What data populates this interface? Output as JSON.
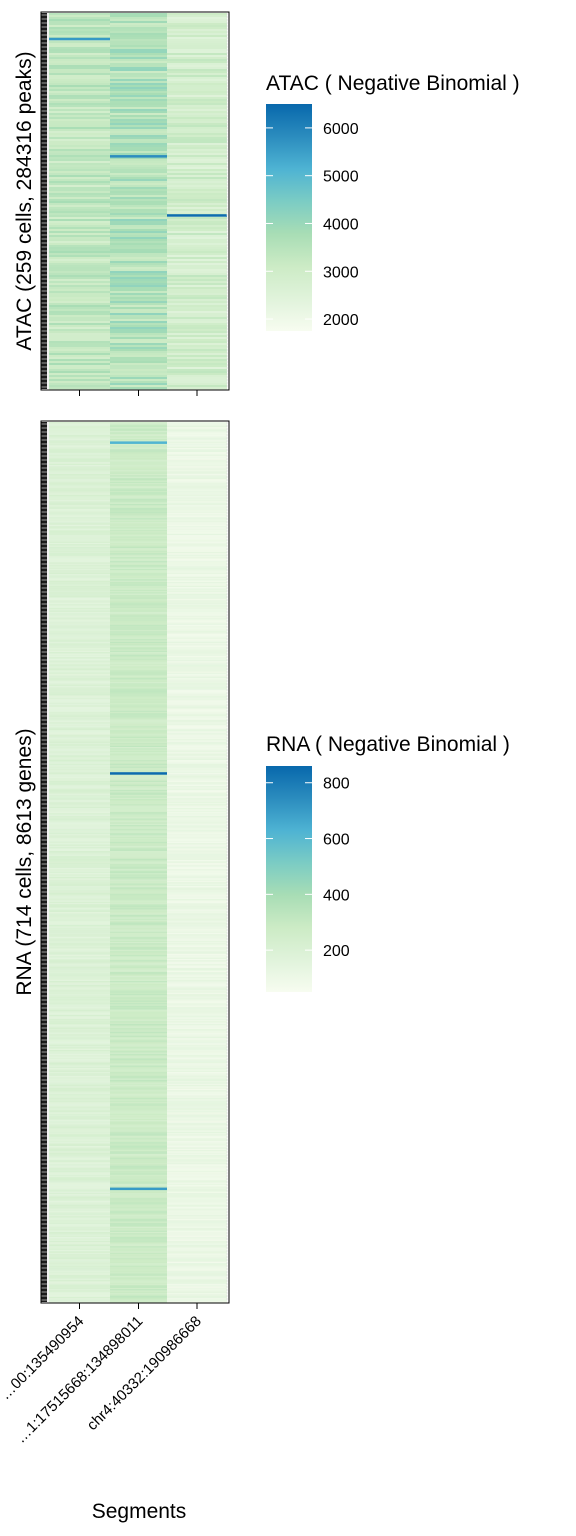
{
  "colors": {
    "scale": [
      "#F7FCF0",
      "#E0F3DB",
      "#CCEBC5",
      "#A8DDB5",
      "#7BCCC4",
      "#4EB3D3",
      "#2B8CBE",
      "#0868AC"
    ],
    "frame": "#000000",
    "gap_line": "#ffffff"
  },
  "chart_data": [
    {
      "type": "heatmap",
      "panel": "atac",
      "ylabel": "ATAC (259 cells, 284316 peaks)",
      "xlabel": "",
      "legend": {
        "title": "ATAC ( Negative Binomial )",
        "min": 1750,
        "max": 6500,
        "ticks": [
          2000,
          3000,
          4000,
          5000,
          6000
        ],
        "tick_labels": [
          "2000",
          "3000",
          "4000",
          "5000",
          "6000"
        ],
        "placement": "right"
      },
      "columns": [
        {
          "segment": "…00:135490954",
          "typical_value": 3300,
          "spread": 500
        },
        {
          "segment": "…1:17515668:134898011",
          "typical_value": 3600,
          "spread": 550
        },
        {
          "segment": "chr4:40332:190986668",
          "typical_value": 2900,
          "spread": 450
        }
      ],
      "n_cells": 259,
      "highlights": [
        {
          "column": 2,
          "row_fraction": 0.535,
          "value": 6400
        },
        {
          "column": 1,
          "row_fraction": 0.378,
          "value": 5800
        },
        {
          "column": 0,
          "row_fraction": 0.066,
          "value": 5600
        }
      ]
    },
    {
      "type": "heatmap",
      "panel": "rna",
      "ylabel": "RNA (714 cells, 8613 genes)",
      "xlabel": "Segments",
      "legend": {
        "title": "RNA ( Negative Binomial )",
        "min": 50,
        "max": 860,
        "ticks": [
          200,
          400,
          600,
          800
        ],
        "tick_labels": [
          "200",
          "400",
          "600",
          "800"
        ],
        "placement": "right"
      },
      "columns": [
        {
          "segment": "…00:135490954",
          "typical_value": 190,
          "spread": 40
        },
        {
          "segment": "…1:17515668:134898011",
          "typical_value": 280,
          "spread": 45
        },
        {
          "segment": "chr4:40332:190986668",
          "typical_value": 110,
          "spread": 35
        }
      ],
      "n_cells": 714,
      "highlights": [
        {
          "column": 1,
          "row_fraction": 0.398,
          "value": 850
        },
        {
          "column": 1,
          "row_fraction": 0.87,
          "value": 700
        },
        {
          "column": 1,
          "row_fraction": 0.022,
          "value": 620
        }
      ],
      "x_tick_labels": [
        "…00:135490954",
        "…1:17515668:134898011",
        "chr4:40332:190986668"
      ]
    }
  ]
}
